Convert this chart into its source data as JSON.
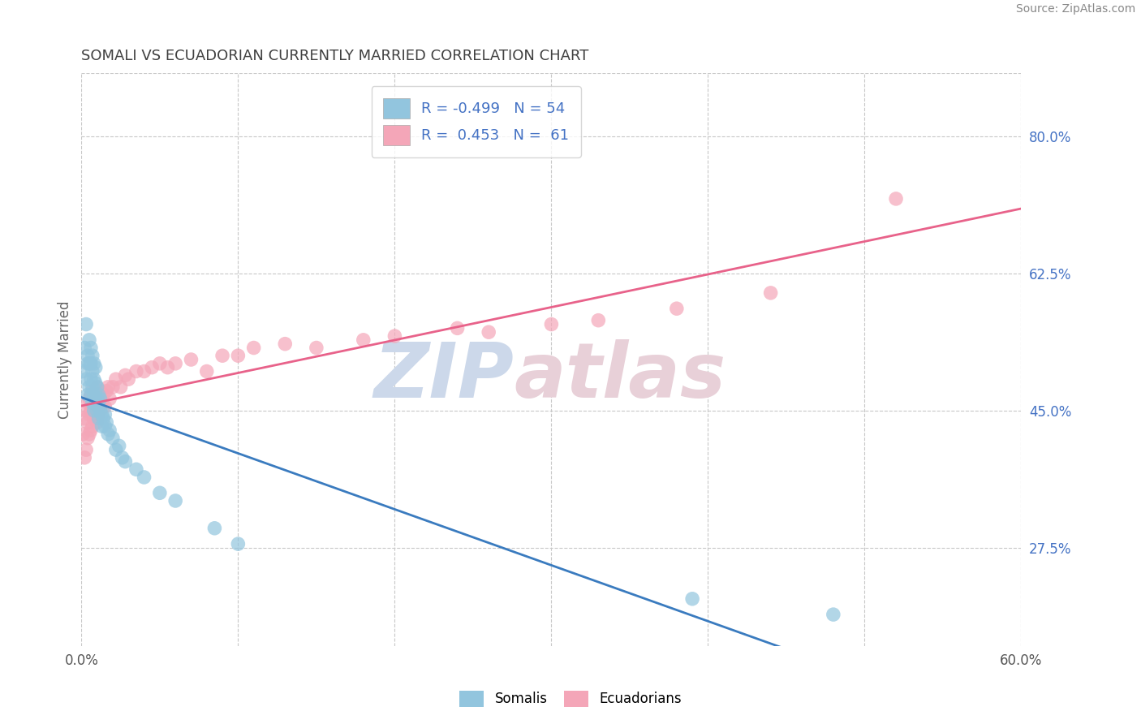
{
  "title": "SOMALI VS ECUADORIAN CURRENTLY MARRIED CORRELATION CHART",
  "source_text": "Source: ZipAtlas.com",
  "xlabel_somali": "Somalis",
  "xlabel_ecuadorian": "Ecuadorians",
  "ylabel": "Currently Married",
  "xlim": [
    0.0,
    0.6
  ],
  "ylim": [
    0.15,
    0.88
  ],
  "xticks": [
    0.0,
    0.1,
    0.2,
    0.3,
    0.4,
    0.5,
    0.6
  ],
  "ytick_labels_right": [
    "27.5%",
    "45.0%",
    "62.5%",
    "80.0%"
  ],
  "ytick_vals_right": [
    0.275,
    0.45,
    0.625,
    0.8
  ],
  "somali_color": "#92c5de",
  "ecuadorian_color": "#f4a6b8",
  "somali_R": -0.499,
  "somali_N": 54,
  "ecuadorian_R": 0.453,
  "ecuadorian_N": 61,
  "trend_somali_color": "#3a7bbf",
  "trend_ecuadorian_color": "#e8628a",
  "background_color": "#ffffff",
  "grid_color": "#c8c8c8",
  "title_color": "#404040",
  "axis_label_color": "#666666",
  "somali_x": [
    0.001,
    0.002,
    0.003,
    0.003,
    0.004,
    0.004,
    0.004,
    0.005,
    0.005,
    0.005,
    0.006,
    0.006,
    0.006,
    0.006,
    0.007,
    0.007,
    0.007,
    0.007,
    0.008,
    0.008,
    0.008,
    0.008,
    0.009,
    0.009,
    0.009,
    0.01,
    0.01,
    0.01,
    0.011,
    0.011,
    0.011,
    0.012,
    0.012,
    0.013,
    0.013,
    0.014,
    0.015,
    0.015,
    0.016,
    0.017,
    0.018,
    0.02,
    0.022,
    0.024,
    0.026,
    0.028,
    0.035,
    0.04,
    0.05,
    0.06,
    0.085,
    0.1,
    0.39,
    0.48
  ],
  "somali_y": [
    0.5,
    0.53,
    0.56,
    0.49,
    0.51,
    0.52,
    0.47,
    0.48,
    0.51,
    0.54,
    0.49,
    0.51,
    0.53,
    0.47,
    0.48,
    0.5,
    0.52,
    0.46,
    0.47,
    0.49,
    0.51,
    0.45,
    0.465,
    0.485,
    0.505,
    0.45,
    0.465,
    0.48,
    0.455,
    0.47,
    0.44,
    0.45,
    0.465,
    0.445,
    0.43,
    0.44,
    0.445,
    0.43,
    0.435,
    0.42,
    0.425,
    0.415,
    0.4,
    0.405,
    0.39,
    0.385,
    0.375,
    0.365,
    0.345,
    0.335,
    0.3,
    0.28,
    0.21,
    0.19
  ],
  "ecuadorian_x": [
    0.001,
    0.002,
    0.002,
    0.003,
    0.003,
    0.004,
    0.004,
    0.004,
    0.005,
    0.005,
    0.005,
    0.006,
    0.006,
    0.006,
    0.007,
    0.007,
    0.007,
    0.008,
    0.008,
    0.009,
    0.009,
    0.01,
    0.01,
    0.01,
    0.011,
    0.011,
    0.012,
    0.012,
    0.013,
    0.014,
    0.015,
    0.016,
    0.017,
    0.018,
    0.02,
    0.022,
    0.025,
    0.028,
    0.03,
    0.035,
    0.04,
    0.045,
    0.05,
    0.055,
    0.06,
    0.07,
    0.08,
    0.09,
    0.1,
    0.11,
    0.13,
    0.15,
    0.18,
    0.2,
    0.24,
    0.26,
    0.3,
    0.33,
    0.38,
    0.44,
    0.52
  ],
  "ecuadorian_y": [
    0.42,
    0.39,
    0.44,
    0.4,
    0.45,
    0.415,
    0.435,
    0.46,
    0.42,
    0.445,
    0.465,
    0.425,
    0.45,
    0.47,
    0.43,
    0.455,
    0.475,
    0.44,
    0.46,
    0.445,
    0.47,
    0.435,
    0.46,
    0.48,
    0.445,
    0.465,
    0.455,
    0.475,
    0.46,
    0.47,
    0.455,
    0.475,
    0.48,
    0.465,
    0.48,
    0.49,
    0.48,
    0.495,
    0.49,
    0.5,
    0.5,
    0.505,
    0.51,
    0.505,
    0.51,
    0.515,
    0.5,
    0.52,
    0.52,
    0.53,
    0.535,
    0.53,
    0.54,
    0.545,
    0.555,
    0.55,
    0.56,
    0.565,
    0.58,
    0.6,
    0.72
  ],
  "somali_trend_solid_end": 0.45,
  "somali_trend_start": 0.0,
  "somali_trend_end": 0.6,
  "ecuadorian_trend_start": 0.0,
  "ecuadorian_trend_end": 0.6
}
